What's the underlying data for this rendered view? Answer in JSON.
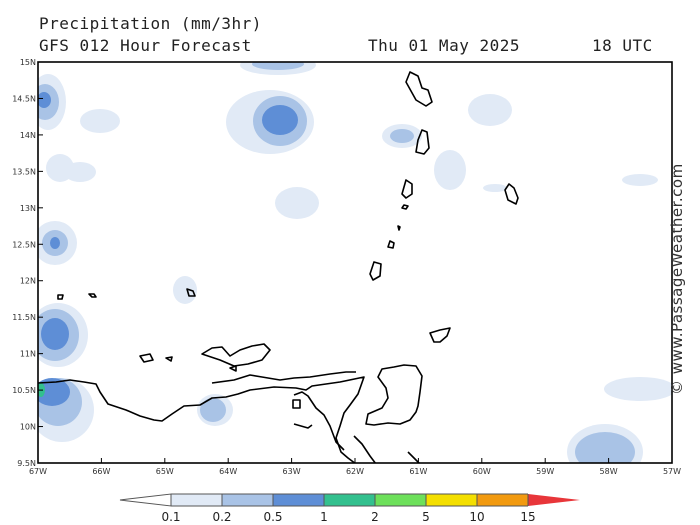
{
  "header": {
    "title": "Precipitation (mm/3hr)",
    "subtitle": "GFS 012 Hour Forecast",
    "date": "Thu 01 May 2025",
    "time": "18 UTC"
  },
  "map": {
    "lat_range": [
      9.5,
      15
    ],
    "lon_range": [
      -67,
      -57
    ],
    "lat_ticks": [
      "15N",
      "14.5N",
      "14N",
      "13.5N",
      "13N",
      "12.5N",
      "12N",
      "11.5N",
      "11N",
      "10.5N",
      "10N",
      "9.5N"
    ],
    "lon_ticks": [
      "67W",
      "66W",
      "65W",
      "64W",
      "63W",
      "62W",
      "61W",
      "60W",
      "59W",
      "58W",
      "57W"
    ]
  },
  "legend": {
    "labels": [
      "0.1",
      "0.2",
      "0.5",
      "1",
      "2",
      "5",
      "10",
      "15"
    ],
    "colors": [
      "#ffffff",
      "#e1eaf6",
      "#a9c3e6",
      "#5e8ed6",
      "#33c08e",
      "#6de05a",
      "#f4df00",
      "#f29a10",
      "#e8363a"
    ]
  },
  "credit": "© www.PassageWeather.com"
}
